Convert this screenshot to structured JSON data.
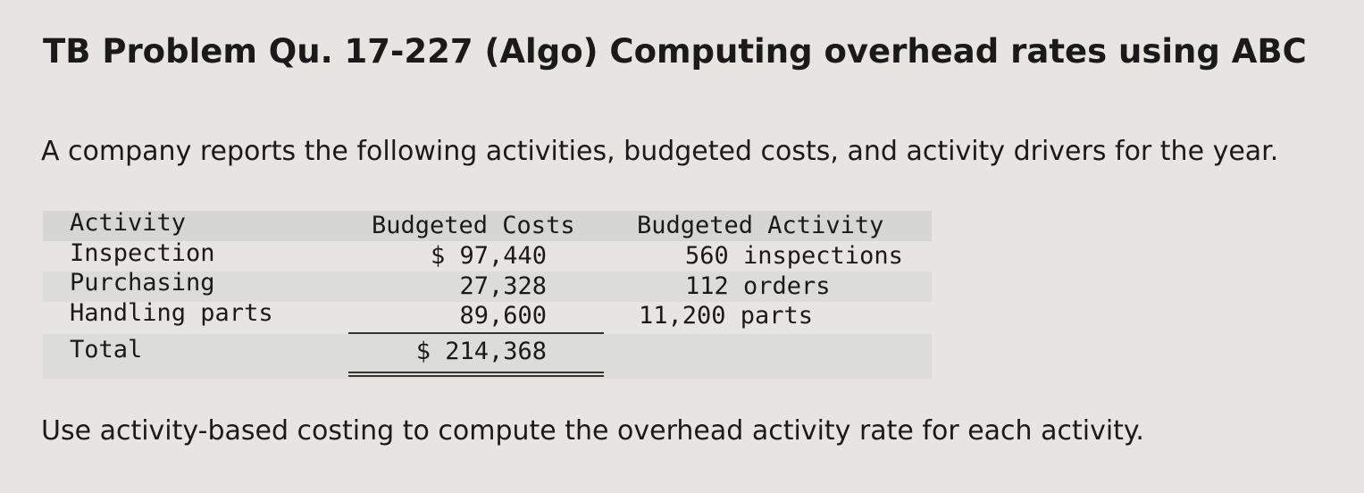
{
  "header": {
    "title": "TB Problem Qu. 17-227 (Algo) Computing overhead rates using ABC"
  },
  "intro": "A company reports the following activities, budgeted costs, and activity drivers for the year.",
  "table": {
    "columns": [
      "Activity",
      "Budgeted Costs",
      "Budgeted Activity"
    ],
    "rows": [
      [
        "Inspection",
        "$ 97,440",
        "560 inspections"
      ],
      [
        "Purchasing",
        "27,328",
        "112 orders"
      ],
      [
        "Handling parts",
        "89,600",
        "11,200 parts"
      ]
    ],
    "total": [
      "Total",
      "$ 214,368"
    ]
  },
  "question": "Use activity-based costing to compute the overhead activity rate for each activity."
}
